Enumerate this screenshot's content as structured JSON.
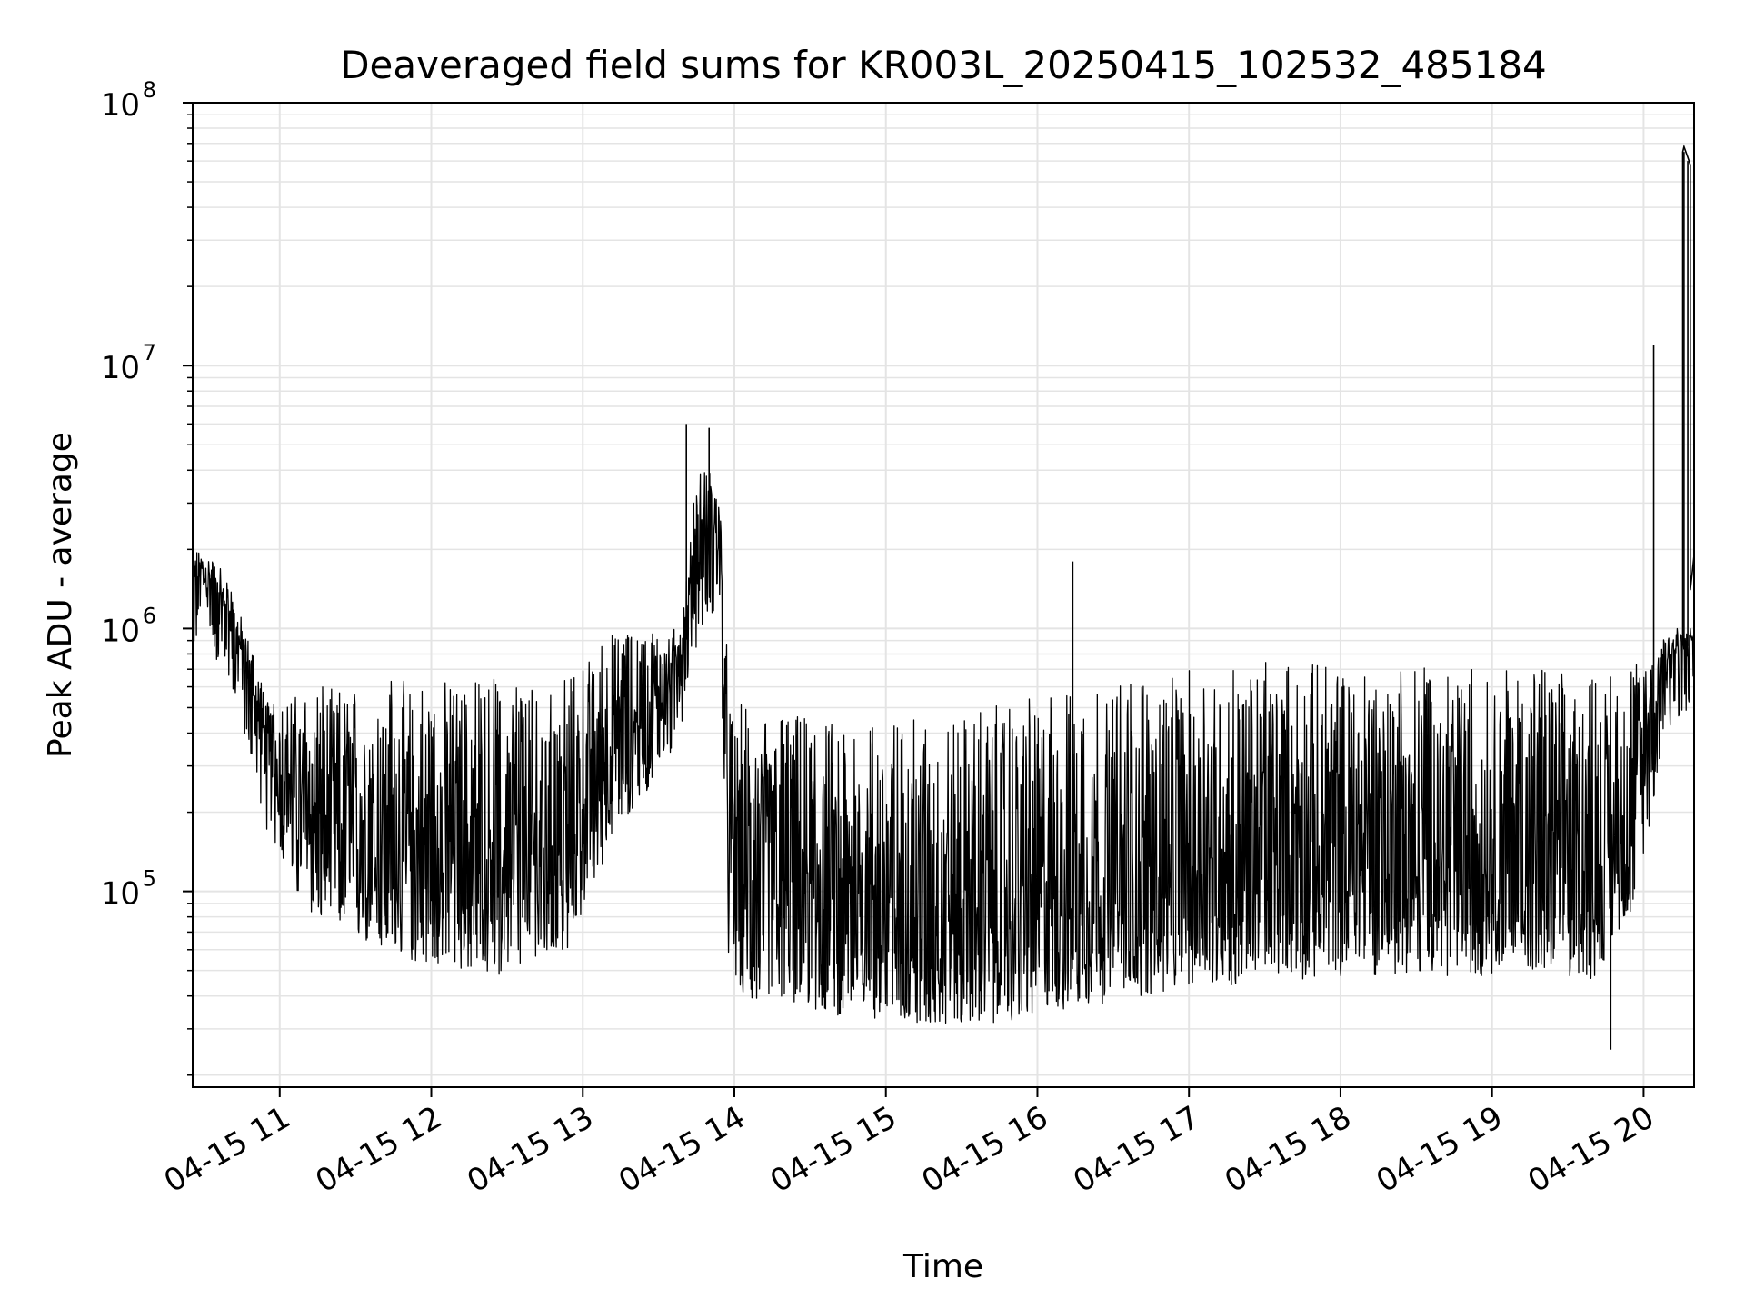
{
  "chart_data": {
    "type": "line",
    "title": "Deaveraged field sums for KR003L_20250415_102532_485184",
    "xlabel": "Time",
    "ylabel": "Peak ADU - average",
    "y_scale": "log",
    "ylim": [
      18000,
      100000000
    ],
    "xlim": [
      "2025-04-15T10:25:32",
      "2025-04-15T20:20:00"
    ],
    "grid": true,
    "line_color": "#000000",
    "grid_color": "#e4e4e4",
    "x_ticks": [
      {
        "t": "2025-04-15T11:00:00",
        "label": "04-15 11"
      },
      {
        "t": "2025-04-15T12:00:00",
        "label": "04-15 12"
      },
      {
        "t": "2025-04-15T13:00:00",
        "label": "04-15 13"
      },
      {
        "t": "2025-04-15T14:00:00",
        "label": "04-15 14"
      },
      {
        "t": "2025-04-15T15:00:00",
        "label": "04-15 15"
      },
      {
        "t": "2025-04-15T16:00:00",
        "label": "04-15 16"
      },
      {
        "t": "2025-04-15T17:00:00",
        "label": "04-15 17"
      },
      {
        "t": "2025-04-15T18:00:00",
        "label": "04-15 18"
      },
      {
        "t": "2025-04-15T19:00:00",
        "label": "04-15 19"
      },
      {
        "t": "2025-04-15T20:00:00",
        "label": "04-15 20"
      }
    ],
    "y_ticks": [
      {
        "v": 100000,
        "base": "10",
        "exp": "5"
      },
      {
        "v": 1000000,
        "base": "10",
        "exp": "6"
      },
      {
        "v": 10000000,
        "base": "10",
        "exp": "7"
      },
      {
        "v": 100000000,
        "base": "10",
        "exp": "8"
      }
    ],
    "series": [
      {
        "x": [
          "2025-04-15T10:25:32",
          "2025-04-15T10:33:00",
          "2025-04-15T10:40:00",
          "2025-04-15T10:48:00",
          "2025-04-15T10:55:00",
          "2025-04-15T11:05:00",
          "2025-04-15T11:15:00",
          "2025-04-15T11:25:00",
          "2025-04-15T11:35:00",
          "2025-04-15T11:45:00",
          "2025-04-15T11:55:00",
          "2025-04-15T12:05:00",
          "2025-04-15T12:15:00",
          "2025-04-15T12:25:00",
          "2025-04-15T12:35:00",
          "2025-04-15T12:45:00",
          "2025-04-15T12:55:00",
          "2025-04-15T13:05:00",
          "2025-04-15T13:15:00",
          "2025-04-15T13:25:00",
          "2025-04-15T13:33:00",
          "2025-04-15T13:40:00",
          "2025-04-15T13:45:00",
          "2025-04-15T13:50:00",
          "2025-04-15T13:54:00",
          "2025-04-15T13:58:00",
          "2025-04-15T14:05:00",
          "2025-04-15T14:20:00",
          "2025-04-15T14:40:00",
          "2025-04-15T15:00:00",
          "2025-04-15T15:20:00",
          "2025-04-15T15:40:00",
          "2025-04-15T16:00:00",
          "2025-04-15T16:20:00",
          "2025-04-15T16:40:00",
          "2025-04-15T17:00:00",
          "2025-04-15T17:30:00",
          "2025-04-15T18:00:00",
          "2025-04-15T18:30:00",
          "2025-04-15T19:00:00",
          "2025-04-15T19:20:00",
          "2025-04-15T19:40:00",
          "2025-04-15T19:55:00",
          "2025-04-15T20:02:00",
          "2025-04-15T20:08:00",
          "2025-04-15T20:14:00",
          "2025-04-15T20:20:00"
        ],
        "base": [
          1500000,
          1400000,
          1100000,
          600000,
          300000,
          170000,
          140000,
          120000,
          110000,
          100000,
          95000,
          90000,
          88000,
          85000,
          90000,
          95000,
          110000,
          200000,
          300000,
          400000,
          500000,
          800000,
          1500000,
          2000000,
          2000000,
          80000,
          70000,
          65000,
          60000,
          58000,
          55000,
          55000,
          60000,
          65000,
          70000,
          75000,
          80000,
          85000,
          85000,
          85000,
          90000,
          80000,
          150000,
          300000,
          700000,
          800000,
          900000
        ],
        "peak": [
          2000000,
          1900000,
          1500000,
          900000,
          550000,
          550000,
          600000,
          600000,
          650000,
          650000,
          650000,
          650000,
          650000,
          650000,
          650000,
          600000,
          650000,
          900000,
          1000000,
          1000000,
          900000,
          1200000,
          4000000,
          4000000,
          3500000,
          550000,
          500000,
          480000,
          450000,
          450000,
          450000,
          500000,
          550000,
          600000,
          650000,
          700000,
          750000,
          750000,
          750000,
          700000,
          700000,
          650000,
          700000,
          800000,
          1000000,
          1000000,
          1000000
        ]
      }
    ],
    "series_note_spikes": [
      {
        "t": "2025-04-15T13:41:00",
        "v": 6000000
      },
      {
        "t": "2025-04-15T13:50:00",
        "v": 5800000
      },
      {
        "t": "2025-04-15T16:14:00",
        "v": 1800000
      },
      {
        "t": "2025-04-15T20:04:00",
        "v": 12000000
      },
      {
        "t": "2025-04-15T20:16:00",
        "v": 65000000
      },
      {
        "t": "2025-04-15T20:17:30",
        "v": 60000000
      },
      {
        "t": "2025-04-15T19:47:00",
        "v": 25000
      }
    ]
  }
}
